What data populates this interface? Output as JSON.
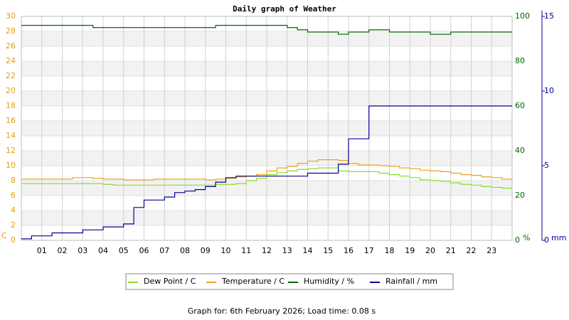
{
  "chart_data": {
    "type": "line",
    "title": "Daily graph of Weather",
    "footer": "Graph for: 6th February 2026; Load time: 0.08 s",
    "y_label": "C",
    "y2_label": "%",
    "y3_label": "mm",
    "x": [
      0,
      0.5,
      1,
      1.5,
      2,
      2.5,
      3,
      3.5,
      4,
      4.5,
      5,
      5.5,
      6,
      6.5,
      7,
      7.5,
      8,
      8.5,
      9,
      9.5,
      10,
      10.5,
      11,
      11.5,
      12,
      12.5,
      13,
      13.5,
      14,
      14.5,
      15,
      15.5,
      16,
      16.5,
      17,
      17.5,
      18,
      18.5,
      19,
      19.5,
      20,
      20.5,
      21,
      21.5,
      22,
      22.5,
      23,
      23.5,
      24
    ],
    "xlim": [
      0,
      24
    ],
    "xticks": [
      {
        "value": 1,
        "label": "01"
      },
      {
        "value": 2,
        "label": "02"
      },
      {
        "value": 3,
        "label": "03"
      },
      {
        "value": 4,
        "label": "04"
      },
      {
        "value": 5,
        "label": "05"
      },
      {
        "value": 6,
        "label": "06"
      },
      {
        "value": 7,
        "label": "07"
      },
      {
        "value": 8,
        "label": "08"
      },
      {
        "value": 9,
        "label": "09"
      },
      10,
      11,
      12,
      13,
      14,
      15,
      16,
      17,
      18,
      19,
      20,
      21,
      22,
      23
    ],
    "ylim": [
      0,
      30
    ],
    "yticks": [
      0,
      2,
      4,
      6,
      8,
      10,
      12,
      14,
      16,
      18,
      20,
      22,
      24,
      26,
      28,
      30
    ],
    "y2lim": [
      0,
      100
    ],
    "y2ticks": [
      0,
      20,
      40,
      60,
      80,
      100
    ],
    "y3lim": [
      0,
      15
    ],
    "y3ticks": [
      0,
      5,
      10,
      15
    ],
    "grid": true,
    "series": [
      {
        "name": "Dew Point / C",
        "color": "#88dd22",
        "axis": "y",
        "values": [
          7.6,
          7.6,
          7.6,
          7.6,
          7.6,
          7.6,
          7.6,
          7.6,
          7.5,
          7.4,
          7.4,
          7.4,
          7.4,
          7.4,
          7.4,
          7.4,
          7.4,
          7.4,
          7.4,
          7.5,
          7.5,
          7.6,
          8.0,
          8.3,
          8.8,
          9.1,
          9.3,
          9.5,
          9.6,
          9.7,
          9.7,
          9.3,
          9.2,
          9.2,
          9.2,
          9.0,
          8.8,
          8.6,
          8.4,
          8.1,
          8.0,
          7.9,
          7.7,
          7.5,
          7.4,
          7.2,
          7.1,
          7.0,
          7.0
        ]
      },
      {
        "name": "Temperature / C",
        "color": "#f0a020",
        "axis": "y",
        "values": [
          8.2,
          8.2,
          8.2,
          8.2,
          8.2,
          8.4,
          8.4,
          8.3,
          8.2,
          8.2,
          8.1,
          8.1,
          8.1,
          8.2,
          8.2,
          8.2,
          8.2,
          8.2,
          8.1,
          8.2,
          8.3,
          8.5,
          8.6,
          8.8,
          9.3,
          9.7,
          9.9,
          10.3,
          10.6,
          10.8,
          10.8,
          10.7,
          10.3,
          10.1,
          10.1,
          10.0,
          9.9,
          9.7,
          9.6,
          9.4,
          9.3,
          9.2,
          9.0,
          8.8,
          8.7,
          8.5,
          8.4,
          8.2,
          8.1
        ]
      },
      {
        "name": "Humidity / %",
        "color": "#006600",
        "axis": "y2",
        "values": [
          96,
          96,
          96,
          96,
          96,
          96,
          96,
          95,
          95,
          95,
          95,
          95,
          95,
          95,
          95,
          95,
          95,
          95,
          95,
          96,
          96,
          96,
          96,
          96,
          96,
          96,
          95,
          94,
          93,
          93,
          93,
          92,
          93,
          93,
          94,
          94,
          93,
          93,
          93,
          93,
          92,
          92,
          93,
          93,
          93,
          93,
          93,
          93,
          93
        ]
      },
      {
        "name": "Rainfall / mm",
        "color": "#000099",
        "axis": "y3",
        "values": [
          0.1,
          0.3,
          0.3,
          0.5,
          0.5,
          0.5,
          0.7,
          0.7,
          0.9,
          0.9,
          1.1,
          2.2,
          2.7,
          2.7,
          2.9,
          3.2,
          3.3,
          3.4,
          3.6,
          3.9,
          4.2,
          4.3,
          4.3,
          4.3,
          4.3,
          4.3,
          4.3,
          4.3,
          4.5,
          4.5,
          4.5,
          5.1,
          6.8,
          6.8,
          9.0,
          9.0,
          9.0,
          9.0,
          9.0,
          9.0,
          9.0,
          9.0,
          9.0,
          9.0,
          9.0,
          9.0,
          9.0,
          9.0,
          9.0
        ]
      }
    ]
  }
}
